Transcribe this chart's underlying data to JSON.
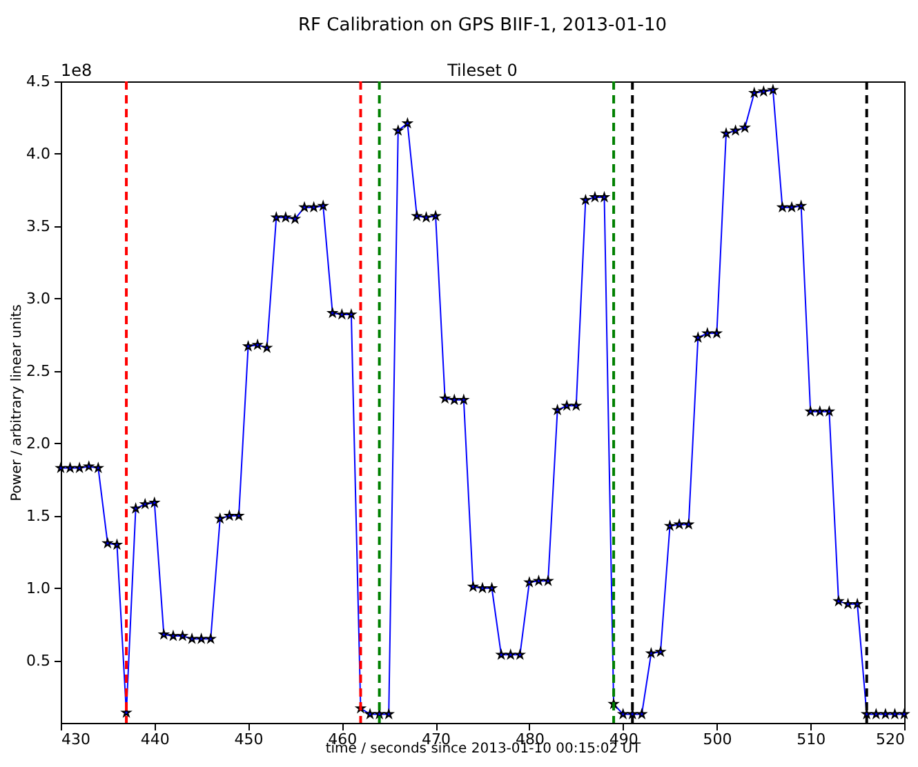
{
  "chart_data": {
    "type": "line",
    "title": "RF Calibration on GPS BIIF-1, 2013-01-10",
    "subtitle": "Tileset 0",
    "xlabel": "time / seconds since 2013-01-10 00:15:02 UT",
    "ylabel": "Power / arbitrary linear units",
    "annotations": [
      "1e8"
    ],
    "x": [
      430,
      431,
      432,
      433,
      434,
      435,
      436,
      437,
      438,
      439,
      440,
      441,
      442,
      443,
      444,
      445,
      446,
      447,
      448,
      449,
      450,
      451,
      452,
      453,
      454,
      455,
      456,
      457,
      458,
      459,
      460,
      461,
      462,
      463,
      464,
      465,
      466,
      467,
      468,
      469,
      470,
      471,
      472,
      473,
      474,
      475,
      476,
      477,
      478,
      479,
      480,
      481,
      482,
      483,
      484,
      485,
      486,
      487,
      488,
      489,
      490,
      491,
      492,
      493,
      494,
      495,
      496,
      497,
      498,
      499,
      500,
      501,
      502,
      503,
      504,
      505,
      506,
      507,
      508,
      509,
      510,
      511,
      512,
      513,
      514,
      515,
      516,
      517,
      518,
      519,
      520
    ],
    "series": [
      {
        "color": "#0000ff",
        "values": [
          1.83,
          1.83,
          1.83,
          1.84,
          1.83,
          1.31,
          1.3,
          0.14,
          1.55,
          1.58,
          1.59,
          0.68,
          0.67,
          0.67,
          0.65,
          0.65,
          0.65,
          1.48,
          1.5,
          1.5,
          2.67,
          2.68,
          2.66,
          3.56,
          3.56,
          3.55,
          3.63,
          3.63,
          3.64,
          2.9,
          2.89,
          2.89,
          0.17,
          0.13,
          0.13,
          0.13,
          4.16,
          4.21,
          3.57,
          3.56,
          3.57,
          2.31,
          2.3,
          2.3,
          1.01,
          1.0,
          1.0,
          0.54,
          0.54,
          0.54,
          1.04,
          1.05,
          1.05,
          2.23,
          2.26,
          2.26,
          3.68,
          3.7,
          3.7,
          0.2,
          0.13,
          0.13,
          0.13,
          0.55,
          0.56,
          1.43,
          1.44,
          1.44,
          2.73,
          2.76,
          2.76,
          4.14,
          4.16,
          4.18,
          4.42,
          4.43,
          4.44,
          3.63,
          3.63,
          3.64,
          2.22,
          2.22,
          2.22,
          0.91,
          0.89,
          0.89,
          0.13,
          0.13,
          0.13,
          0.13,
          0.13
        ]
      }
    ],
    "xlim": [
      430,
      520
    ],
    "xticks": [
      430,
      440,
      450,
      460,
      470,
      480,
      490,
      500,
      510,
      520
    ],
    "ylim": [
      0.07,
      4.5
    ],
    "yticks": [
      0.5,
      {
        "value": 1,
        "label": "1.0"
      },
      1.5,
      {
        "value": 2,
        "label": "2.0"
      },
      2.5,
      {
        "value": 3,
        "label": "3.0"
      },
      3.5,
      {
        "value": 4,
        "label": "4.0"
      },
      4.5
    ],
    "ref_lines": [
      {
        "axis": "x",
        "value": 437,
        "color": "#ff0000",
        "line_style": "dashed"
      },
      {
        "axis": "x",
        "value": 462,
        "color": "#ff0000",
        "line_style": "dashed"
      },
      {
        "axis": "x",
        "value": 464,
        "color": "#008000",
        "line_style": "dashed"
      },
      {
        "axis": "x",
        "value": 489,
        "color": "#008000",
        "line_style": "dashed"
      },
      {
        "axis": "x",
        "value": 491,
        "color": "#000000",
        "line_style": "dashed"
      },
      {
        "axis": "x",
        "value": 516,
        "color": "#000000",
        "line_style": "dashed"
      }
    ],
    "grid": false,
    "marker": "star",
    "line_style": "solid"
  }
}
